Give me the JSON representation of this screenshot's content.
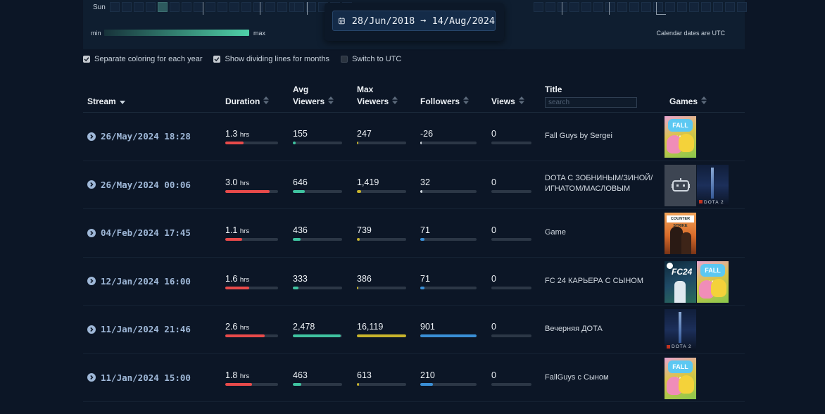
{
  "calendar": {
    "day_label": "Sun",
    "legend_min": "min",
    "legend_max": "max",
    "utc_note": "Calendar dates are UTC",
    "date_range": "28/Jun/2018 ➞ 14/Aug/2024"
  },
  "options": {
    "separate_coloring": {
      "label": "Separate coloring for each year",
      "checked": true
    },
    "dividing_lines": {
      "label": "Show dividing lines for months",
      "checked": true
    },
    "switch_utc": {
      "label": "Switch to UTC",
      "checked": false
    }
  },
  "table": {
    "headers": {
      "stream": "Stream",
      "duration": "Duration",
      "avg_viewers_1": "Avg",
      "avg_viewers_2": "Viewers",
      "max_viewers_1": "Max",
      "max_viewers_2": "Viewers",
      "followers": "Followers",
      "views": "Views",
      "title": "Title",
      "games": "Games"
    },
    "search_placeholder": "search",
    "duration_unit": "hrs",
    "colors": {
      "duration": "#e84a4a",
      "avg": "#3fc3a0",
      "max": "#c8b42c",
      "followers": "#3a8fd6"
    },
    "rows": [
      {
        "date": "26/May/2024 18:28",
        "duration": "1.3",
        "avg": "155",
        "max": "247",
        "followers": "-26",
        "views": "0",
        "title": "Fall Guys by Sergei",
        "bars": {
          "duration": 0.35,
          "avg": 0.05,
          "max": 0.03,
          "followers": 0.02,
          "views": 0
        },
        "games": [
          "fall-guys"
        ]
      },
      {
        "date": "26/May/2024 00:06",
        "duration": "3.0",
        "avg": "646",
        "max": "1,419",
        "followers": "32",
        "views": "0",
        "title": "DOTA С ЗОБНИНЫМ/ЗИНОЙ/ИГНАТОМ/МАСЛОВЫМ",
        "bars": {
          "duration": 0.84,
          "avg": 0.24,
          "max": 0.09,
          "followers": 0.04,
          "views": 0
        },
        "games": [
          "robot",
          "dota-2"
        ]
      },
      {
        "date": "04/Feb/2024 17:45",
        "duration": "1.1",
        "avg": "436",
        "max": "739",
        "followers": "71",
        "views": "0",
        "title": "Game",
        "bars": {
          "duration": 0.32,
          "avg": 0.16,
          "max": 0.05,
          "followers": 0.08,
          "views": 0
        },
        "games": [
          "counter-strike"
        ]
      },
      {
        "date": "12/Jan/2024 16:00",
        "duration": "1.6",
        "avg": "333",
        "max": "386",
        "followers": "71",
        "views": "0",
        "title": "FC 24 КАРЬЕРА С СЫНОМ",
        "bars": {
          "duration": 0.45,
          "avg": 0.12,
          "max": 0.03,
          "followers": 0.08,
          "views": 0
        },
        "games": [
          "fc-24",
          "fall-guys"
        ]
      },
      {
        "date": "11/Jan/2024 21:46",
        "duration": "2.6",
        "avg": "2,478",
        "max": "16,119",
        "followers": "901",
        "views": "0",
        "title": "Вечерняя ДОТА",
        "bars": {
          "duration": 0.74,
          "avg": 0.97,
          "max": 1.0,
          "followers": 1.0,
          "views": 0
        },
        "games": [
          "dota-2"
        ]
      },
      {
        "date": "11/Jan/2024 15:00",
        "duration": "1.8",
        "avg": "463",
        "max": "613",
        "followers": "210",
        "views": "0",
        "title": "FallGuys с Сыном",
        "bars": {
          "duration": 0.5,
          "avg": 0.17,
          "max": 0.04,
          "followers": 0.23,
          "views": 0
        },
        "games": [
          "fall-guys"
        ]
      }
    ],
    "game_labels": {
      "fall-guys": "FALL GUYS",
      "dota-2": "DOTA 2",
      "counter-strike": "COUNTER STRIKE",
      "fc-24": "FC24"
    }
  }
}
